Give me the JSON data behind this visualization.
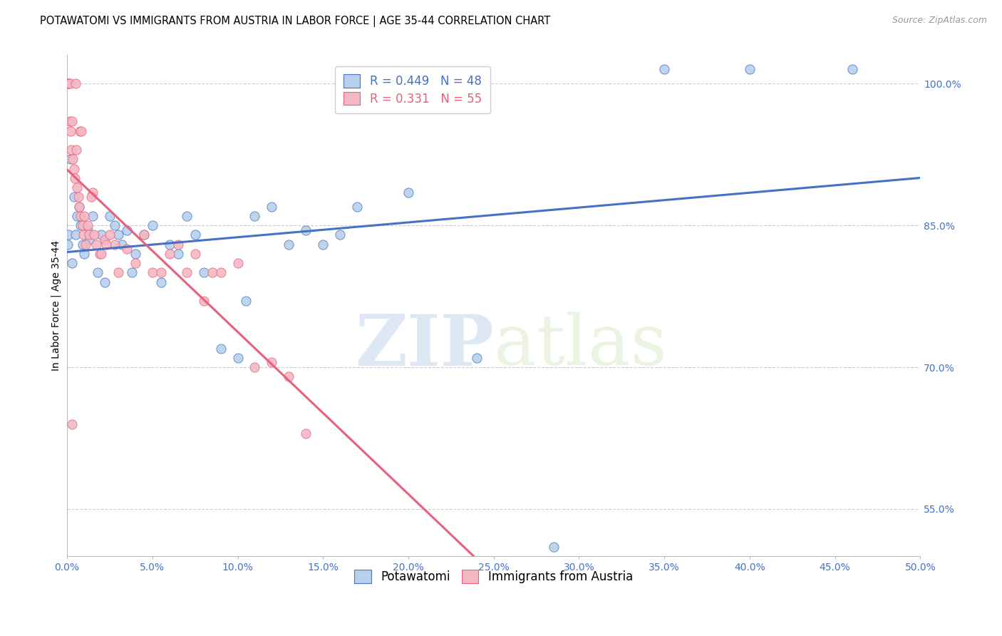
{
  "title": "POTAWATOMI VS IMMIGRANTS FROM AUSTRIA IN LABOR FORCE | AGE 35-44 CORRELATION CHART",
  "source": "Source: ZipAtlas.com",
  "ylabel": "In Labor Force | Age 35-44",
  "xlim": [
    0.0,
    50.0
  ],
  "ylim": [
    50.0,
    103.0
  ],
  "yticks": [
    55.0,
    70.0,
    85.0,
    100.0
  ],
  "xticks": [
    0.0,
    5.0,
    10.0,
    15.0,
    20.0,
    25.0,
    30.0,
    35.0,
    40.0,
    45.0,
    50.0
  ],
  "blue_R": 0.449,
  "blue_N": 48,
  "pink_R": 0.331,
  "pink_N": 55,
  "legend_label_blue": "Potawatomi",
  "legend_label_pink": "Immigrants from Austria",
  "blue_scatter_x": [
    0.05,
    0.1,
    0.2,
    0.3,
    0.4,
    0.5,
    0.6,
    0.7,
    0.8,
    0.9,
    1.0,
    1.2,
    1.3,
    1.5,
    1.8,
    2.0,
    2.2,
    2.5,
    2.8,
    3.0,
    3.2,
    3.5,
    3.8,
    4.0,
    4.5,
    5.0,
    5.5,
    6.0,
    6.5,
    7.0,
    7.5,
    8.0,
    9.0,
    10.0,
    10.5,
    11.0,
    12.0,
    13.0,
    14.0,
    15.0,
    16.0,
    17.0,
    20.0,
    24.0,
    28.5,
    35.0,
    40.0,
    46.0
  ],
  "blue_scatter_y": [
    83.0,
    84.0,
    92.0,
    81.0,
    88.0,
    84.0,
    86.0,
    87.0,
    85.0,
    83.0,
    82.0,
    84.5,
    83.5,
    86.0,
    80.0,
    84.0,
    79.0,
    86.0,
    85.0,
    84.0,
    83.0,
    84.5,
    80.0,
    82.0,
    84.0,
    85.0,
    79.0,
    83.0,
    82.0,
    86.0,
    84.0,
    80.0,
    72.0,
    71.0,
    77.0,
    86.0,
    87.0,
    83.0,
    84.5,
    83.0,
    84.0,
    87.0,
    88.5,
    71.0,
    51.0,
    101.5,
    101.5,
    101.5
  ],
  "pink_scatter_x": [
    0.05,
    0.08,
    0.1,
    0.12,
    0.15,
    0.18,
    0.2,
    0.25,
    0.3,
    0.35,
    0.4,
    0.45,
    0.5,
    0.55,
    0.6,
    0.65,
    0.7,
    0.75,
    0.8,
    0.85,
    0.9,
    0.95,
    1.0,
    1.1,
    1.2,
    1.3,
    1.5,
    1.7,
    1.9,
    2.0,
    2.2,
    2.5,
    2.8,
    3.0,
    3.5,
    4.0,
    4.5,
    5.0,
    5.5,
    6.0,
    6.5,
    7.0,
    7.5,
    8.0,
    8.5,
    9.0,
    10.0,
    11.0,
    12.0,
    13.0,
    14.0,
    1.6,
    2.3,
    0.3,
    1.4
  ],
  "pink_scatter_y": [
    100.0,
    100.0,
    100.0,
    100.0,
    100.0,
    96.0,
    95.0,
    93.0,
    96.0,
    92.0,
    91.0,
    90.0,
    100.0,
    93.0,
    89.0,
    88.0,
    87.0,
    95.0,
    86.0,
    95.0,
    85.0,
    84.0,
    86.0,
    83.0,
    85.0,
    84.0,
    88.5,
    83.0,
    82.0,
    82.0,
    83.5,
    84.0,
    83.0,
    80.0,
    82.5,
    81.0,
    84.0,
    80.0,
    80.0,
    82.0,
    83.0,
    80.0,
    82.0,
    77.0,
    80.0,
    80.0,
    81.0,
    70.0,
    70.5,
    69.0,
    63.0,
    84.0,
    83.0,
    64.0,
    88.0
  ],
  "blue_line_color": "#4472C4",
  "pink_line_color": "#E8607A",
  "blue_scatter_facecolor": "#B8D0EC",
  "pink_scatter_facecolor": "#F4B8C4",
  "grid_color": "#CCCCCC",
  "watermark_zip": "ZIP",
  "watermark_atlas": "atlas",
  "background_color": "#FFFFFF",
  "title_fontsize": 10.5,
  "axis_label_fontsize": 10,
  "tick_fontsize": 10,
  "legend_fontsize": 12
}
